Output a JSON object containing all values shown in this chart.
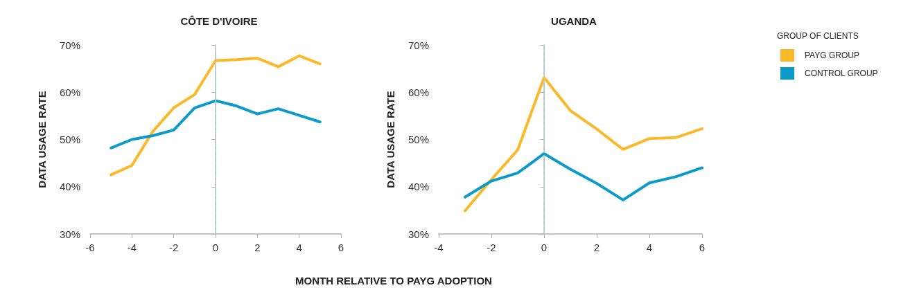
{
  "chart_data": [
    {
      "type": "line",
      "title": "CÔTE D'IVOIRE",
      "ylabel": "DATA USAGE RATE",
      "xlabel": "MONTH RELATIVE TO PAYG ADOPTION",
      "x": [
        -5,
        -4,
        -3,
        -2,
        -1,
        0,
        1,
        2,
        3,
        4,
        5
      ],
      "series": [
        {
          "color": "#fbb829",
          "values": [
            42.5,
            44.5,
            51.7,
            56.7,
            59.5,
            66.7,
            66.9,
            67.2,
            65.4,
            67.7,
            66.0
          ]
        },
        {
          "color": "#0a9bcb",
          "values": [
            48.2,
            50.0,
            50.8,
            52.0,
            56.7,
            58.2,
            57.1,
            55.4,
            56.5,
            55.1,
            53.7
          ]
        }
      ],
      "xlim": [
        -6,
        6
      ],
      "xticks": [
        -6,
        -4,
        -2,
        0,
        2,
        4,
        6
      ],
      "ylim": [
        30,
        70
      ],
      "yticks": [
        {
          "value": 30,
          "label": "30%"
        },
        {
          "value": 40,
          "label": "40%"
        },
        {
          "value": 50,
          "label": "50%"
        },
        {
          "value": 60,
          "label": "60%"
        },
        {
          "value": 70,
          "label": "70%"
        }
      ],
      "ref_lines": [
        {
          "axis": "x",
          "value": 0,
          "color": "#b5d8d6",
          "line_style": "dashed"
        }
      ],
      "grid": false,
      "legend": false,
      "marker": "none",
      "line_style": "solid"
    },
    {
      "type": "line",
      "title": "UGANDA",
      "ylabel": "DATA USAGE RATE",
      "legend_title": "GROUP OF CLIENTS",
      "x": [
        -3,
        -2,
        -1,
        0,
        1,
        2,
        3,
        4,
        5,
        6
      ],
      "series": [
        {
          "name": "PAYG GROUP",
          "color": "#fbb829",
          "values": [
            34.9,
            41.5,
            47.8,
            63.1,
            56.1,
            52.2,
            47.9,
            50.2,
            50.4,
            52.3
          ]
        },
        {
          "name": "CONTROL GROUP",
          "color": "#0a9bcb",
          "values": [
            37.8,
            41.2,
            42.9,
            47.0,
            43.7,
            40.7,
            37.2,
            40.8,
            42.1,
            44.0
          ]
        }
      ],
      "xlim": [
        -4,
        6
      ],
      "xticks": [
        -4,
        -2,
        0,
        2,
        4,
        6
      ],
      "ylim": [
        30,
        70
      ],
      "yticks": [
        {
          "value": 30,
          "label": "30%"
        },
        {
          "value": 40,
          "label": "40%"
        },
        {
          "value": 50,
          "label": "50%"
        },
        {
          "value": 60,
          "label": "60%"
        },
        {
          "value": 70,
          "label": "70%"
        }
      ],
      "ref_lines": [
        {
          "axis": "x",
          "value": 0,
          "color": "#b5d8d6",
          "line_style": "dashed"
        }
      ],
      "grid": false,
      "legend": "right",
      "marker": "none",
      "line_style": "solid"
    }
  ]
}
